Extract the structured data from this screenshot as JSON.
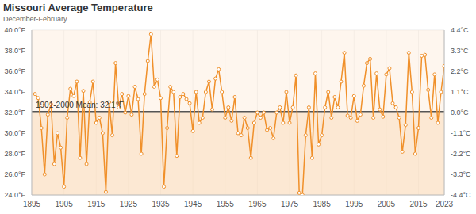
{
  "chart_data": {
    "type": "line",
    "title": "Missouri Average Temperature",
    "subtitle": "December-February",
    "x": [
      1896,
      1897,
      1898,
      1899,
      1900,
      1901,
      1902,
      1903,
      1904,
      1905,
      1906,
      1907,
      1908,
      1909,
      1910,
      1911,
      1912,
      1913,
      1914,
      1915,
      1916,
      1917,
      1918,
      1919,
      1920,
      1921,
      1922,
      1923,
      1924,
      1925,
      1926,
      1927,
      1928,
      1929,
      1930,
      1931,
      1932,
      1933,
      1934,
      1935,
      1936,
      1937,
      1938,
      1939,
      1940,
      1941,
      1942,
      1943,
      1944,
      1945,
      1946,
      1947,
      1948,
      1949,
      1950,
      1951,
      1952,
      1953,
      1954,
      1955,
      1956,
      1957,
      1958,
      1959,
      1960,
      1961,
      1962,
      1963,
      1964,
      1965,
      1966,
      1967,
      1968,
      1969,
      1970,
      1971,
      1972,
      1973,
      1974,
      1975,
      1976,
      1977,
      1978,
      1979,
      1980,
      1981,
      1982,
      1983,
      1984,
      1985,
      1986,
      1987,
      1988,
      1989,
      1990,
      1991,
      1992,
      1993,
      1994,
      1995,
      1996,
      1997,
      1998,
      1999,
      2000,
      2001,
      2002,
      2003,
      2004,
      2005,
      2006,
      2007,
      2008,
      2009,
      2010,
      2011,
      2012,
      2013,
      2014,
      2015,
      2016,
      2017,
      2018,
      2019,
      2020,
      2021,
      2022,
      2023
    ],
    "series": [
      {
        "name": "Missouri Average Temperature",
        "color": "#f0902a",
        "marker": "circle",
        "values": [
          33.8,
          33.4,
          30.5,
          26.0,
          31.8,
          32.8,
          27.0,
          30.0,
          28.6,
          24.8,
          31.5,
          34.3,
          33.6,
          35.0,
          27.6,
          34.1,
          27.0,
          33.0,
          35.0,
          31.0,
          31.5,
          30.0,
          24.3,
          33.0,
          29.8,
          36.8,
          32.5,
          33.8,
          32.0,
          33.6,
          31.8,
          34.5,
          33.3,
          28.0,
          33.8,
          37.0,
          39.6,
          34.5,
          35.2,
          33.4,
          24.8,
          30.5,
          34.5,
          34.0,
          27.8,
          33.5,
          33.8,
          33.3,
          32.9,
          30.2,
          34.0,
          31.0,
          31.5,
          34.0,
          35.0,
          32.3,
          35.3,
          36.2,
          34.0,
          31.5,
          32.5,
          31.2,
          33.5,
          30.0,
          29.8,
          31.5,
          30.5,
          27.6,
          31.0,
          32.0,
          31.5,
          32.0,
          30.3,
          30.5,
          29.5,
          32.0,
          32.5,
          31.0,
          34.0,
          31.0,
          32.5,
          35.6,
          24.2,
          24.0,
          29.8,
          32.5,
          27.6,
          35.8,
          28.9,
          29.8,
          32.5,
          34.0,
          31.5,
          33.5,
          32.5,
          35.0,
          37.8,
          31.7,
          31.5,
          33.6,
          31.2,
          31.8,
          34.6,
          36.8,
          37.2,
          31.5,
          35.8,
          32.3,
          31.6,
          35.7,
          36.3,
          32.9,
          32.5,
          31.5,
          28.2,
          30.8,
          37.8,
          34.0,
          28.0,
          30.5,
          37.5,
          37.6,
          34.2,
          31.5,
          35.7,
          31.0,
          34.0,
          36.5
        ]
      }
    ],
    "xlim": [
      1895,
      2023
    ],
    "xticks": [
      1895,
      1905,
      1915,
      1925,
      1935,
      1945,
      1955,
      1965,
      1975,
      1985,
      1995,
      2005,
      2015,
      2023
    ],
    "ylim": [
      24,
      40
    ],
    "yticks": [
      {
        "value": 24,
        "label": "24.0°F"
      },
      {
        "value": 26,
        "label": "26.0°F"
      },
      {
        "value": 28,
        "label": "28.0°F"
      },
      {
        "value": 30,
        "label": "30.0°F"
      },
      {
        "value": 32,
        "label": "32.0°F"
      },
      {
        "value": 34,
        "label": "34.0°F"
      },
      {
        "value": 36,
        "label": "36.0°F"
      },
      {
        "value": 38,
        "label": "38.0°F"
      },
      {
        "value": 40,
        "label": "40.0°F"
      }
    ],
    "y2lim": [
      -4.4,
      4.4
    ],
    "y2ticks": [
      {
        "value": -4.4,
        "label": "-4.4°C"
      },
      {
        "value": -3.3,
        "label": "-3.3°C"
      },
      {
        "value": -2.2,
        "label": "-2.2°C"
      },
      {
        "value": -1.1,
        "label": "-1.1°C"
      },
      {
        "value": 0,
        "label": "0.0°C"
      },
      {
        "value": 1.1,
        "label": "1.1°C"
      },
      {
        "value": 2.2,
        "label": "2.2°C"
      },
      {
        "value": 3.3,
        "label": "3.3°C"
      },
      {
        "value": 4.4,
        "label": "4.4°C"
      }
    ],
    "mean": {
      "label": "1901-2000 Mean: 32.1°F",
      "value": 32.1
    },
    "grid": true
  }
}
